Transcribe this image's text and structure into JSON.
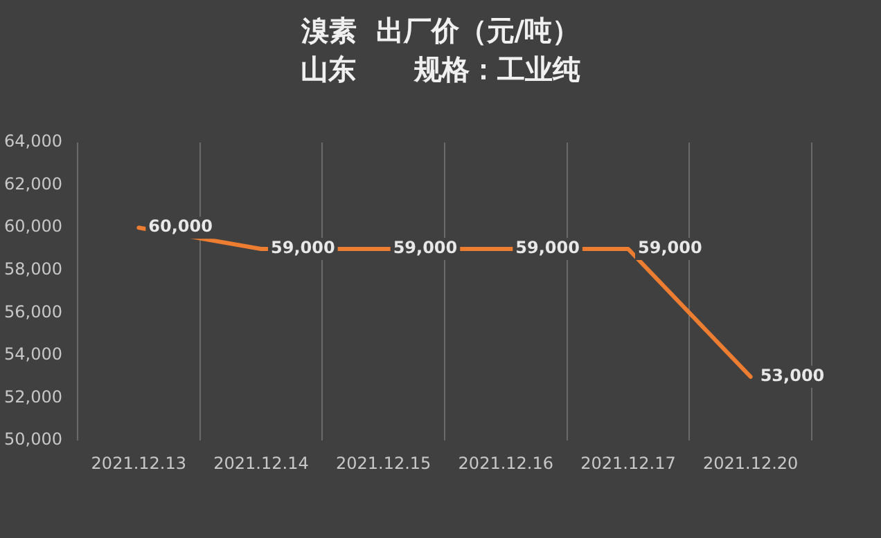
{
  "chart_data": {
    "type": "line",
    "title": "溴素  出厂价（元/吨）",
    "subtitle": "山东      规格：工业纯",
    "categories": [
      "2021.12.13",
      "2021.12.14",
      "2021.12.15",
      "2021.12.16",
      "2021.12.17",
      "2021.12.20"
    ],
    "series": [
      {
        "color": "#ed7d31",
        "values": [
          60000,
          59000,
          59000,
          59000,
          59000,
          53000
        ],
        "value_labels": [
          "60,000",
          "59,000",
          "59,000",
          "59,000",
          "59,000",
          "53,000"
        ]
      }
    ],
    "ylim": [
      50000,
      64000
    ],
    "yticks": [
      {
        "value": 50000,
        "label": "50,000"
      },
      {
        "value": 52000,
        "label": "52,000"
      },
      {
        "value": 54000,
        "label": "54,000"
      },
      {
        "value": 56000,
        "label": "56,000"
      },
      {
        "value": 58000,
        "label": "58,000"
      },
      {
        "value": 60000,
        "label": "60,000"
      },
      {
        "value": 62000,
        "label": "62,000"
      },
      {
        "value": 64000,
        "label": "64,000"
      }
    ],
    "grid": "x",
    "legend": false,
    "marker": "none",
    "line_style": "solid"
  }
}
